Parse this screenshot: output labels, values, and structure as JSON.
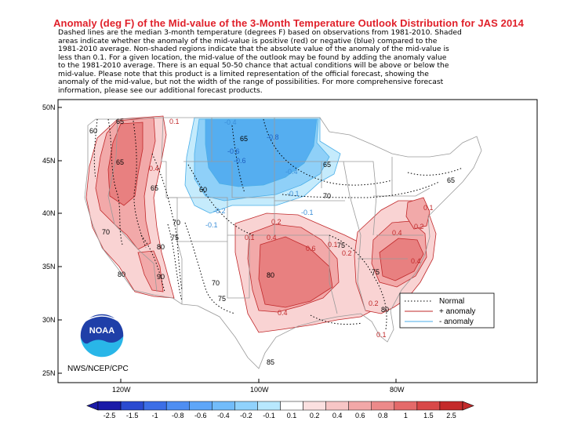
{
  "title": "Anomaly (deg F) of the Mid-value of the 3-Month Temperature Outlook Distribution for JAS 2014",
  "description_lines": [
    "Dashed lines are the median 3-month temperature (degrees F) based on observations from 1981-2010.   Shaded",
    "areas indicate whether the anomaly of the mid-value is positive (red) or negative (blue) compared to the",
    "1981-2010 average.   Non-shaded regions indicate that the absolute value of the anomaly of the mid-value is",
    "less than 0.1.   For a given location, the mid-value of the outlook may be found by adding the anomaly value",
    "to the 1981-2010 average. There is an equal 50-50 chance that actual conditions will be above or below the",
    "mid-value. Please note that this product is a limited representation of the official forecast, showing the",
    "anomaly of the mid-value, but not the width of the range of possibilities. For more comprehensive forecast",
    "information, please see our additional forecast products."
  ],
  "lat_labels": [
    "50N",
    "45N",
    "40N",
    "35N",
    "30N",
    "25N"
  ],
  "lon_labels": [
    "120W",
    "100W",
    "80W"
  ],
  "legend": {
    "normal": "Normal",
    "plus": "+ anomaly",
    "minus": "- anomaly"
  },
  "credit": "NWS/NCEP/CPC",
  "logo_text": "NOAA",
  "colorbar": {
    "labels": [
      "-2.5",
      "-1.5",
      "-1",
      "-0.8",
      "-0.6",
      "-0.4",
      "-0.2",
      "-0.1",
      "0.1",
      "0.2",
      "0.4",
      "0.6",
      "0.8",
      "1",
      "1.5",
      "2.5"
    ],
    "colors": [
      "#1a1aa8",
      "#2a4ad0",
      "#3c6ee6",
      "#4e8ef2",
      "#5ea6f8",
      "#72bcfa",
      "#90d2fc",
      "#b8e8fe",
      "#ffffff",
      "#fbe0e0",
      "#f7c6c6",
      "#f2a8a8",
      "#ec8a8a",
      "#e46a6a",
      "#d84848",
      "#c42a2a"
    ]
  },
  "contour_labels": [
    "65",
    "65",
    "65",
    "65",
    "65",
    "65",
    "70",
    "70",
    "70",
    "70",
    "75",
    "75",
    "75",
    "75",
    "80",
    "80",
    "80",
    "80",
    "85",
    "90",
    "60",
    "60",
    "0.1",
    "0.1",
    "0.1",
    "0.1",
    "0.1",
    "0.2",
    "0.2",
    "0.2",
    "0.2",
    "0.4",
    "0.4",
    "0.4",
    "0.4",
    "0.4",
    "0.6",
    "-0.1",
    "-0.1",
    "-0.1",
    "-0.2",
    "-0.4",
    "-0.4",
    "-0.6",
    "-0.8",
    "-0.6"
  ],
  "colors": {
    "title": "#e0202a",
    "frame": "#000000",
    "warm_light": "#f9d3d3",
    "warm_mid": "#f2a9a9",
    "warm_strong": "#e88080",
    "cool_light": "#c5ebfc",
    "cool_mid": "#8fd0f8",
    "cool_strong": "#55aef0",
    "boundary": "#9a9a9a",
    "plus_anomaly_line": "#c0282a",
    "minus_anomaly_line": "#4aaee8"
  }
}
